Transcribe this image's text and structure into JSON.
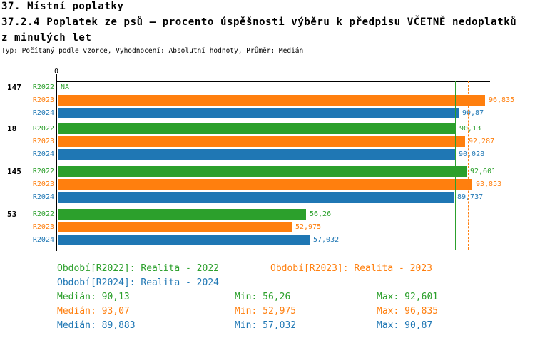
{
  "header": {
    "title_line1": "37. Místní poplatky",
    "title_line2": "37.2.4 Poplatek ze psů – procento úspěšnosti výběru k předpisu VČETNĚ nedoplatků",
    "title_line3": "z minulých let",
    "meta": "Typ: Počítaný podle vzorce, Vyhodnocení: Absolutní hodnoty, Průměr: Medián"
  },
  "colors": {
    "r2022_green": "#2ca02c",
    "r2023_orange": "#ff7f0e",
    "r2024_blue": "#1f77b4",
    "axis_black": "#000000"
  },
  "chart_data": {
    "type": "bar",
    "orientation": "horizontal",
    "x_axis": {
      "origin_label": "0",
      "min": 0,
      "max": 97.65,
      "grid": false
    },
    "categories": [
      "147",
      "18",
      "145",
      "53"
    ],
    "series": [
      {
        "name": "R2022",
        "color": "#2ca02c",
        "values": [
          null,
          90.13,
          92.601,
          56.26
        ],
        "value_labels": [
          "NA",
          "90,13",
          "92,601",
          "56,26"
        ],
        "median": 90.13,
        "median_line_style": "solid"
      },
      {
        "name": "R2023",
        "color": "#ff7f0e",
        "values": [
          96.835,
          92.287,
          93.853,
          52.975
        ],
        "value_labels": [
          "96,835",
          "92,287",
          "93,853",
          "52,975"
        ],
        "median": 93.07,
        "median_line_style": "dashed"
      },
      {
        "name": "R2024",
        "color": "#1f77b4",
        "values": [
          90.87,
          90.028,
          89.737,
          57.032
        ],
        "value_labels": [
          "90,87",
          "90,028",
          "89,737",
          "57,032"
        ],
        "median": 89.883,
        "median_line_style": "solid"
      }
    ],
    "legend_position": "bottom"
  },
  "legend": {
    "items": [
      {
        "label": "Období[R2022]: Realita - 2022",
        "color": "#2ca02c"
      },
      {
        "label": "Období[R2023]: Realita - 2023",
        "color": "#ff7f0e"
      },
      {
        "label": "Období[R2024]: Realita - 2024",
        "color": "#1f77b4"
      }
    ]
  },
  "stats": {
    "rows": [
      {
        "median": "Medián: 90,13",
        "min": "Min: 56,26",
        "max": "Max: 92,601",
        "color": "#2ca02c"
      },
      {
        "median": "Medián: 93,07",
        "min": "Min: 52,975",
        "max": "Max: 96,835",
        "color": "#ff7f0e"
      },
      {
        "median": "Medián: 89,883",
        "min": "Min: 57,032",
        "max": "Max: 90,87",
        "color": "#1f77b4"
      }
    ]
  }
}
